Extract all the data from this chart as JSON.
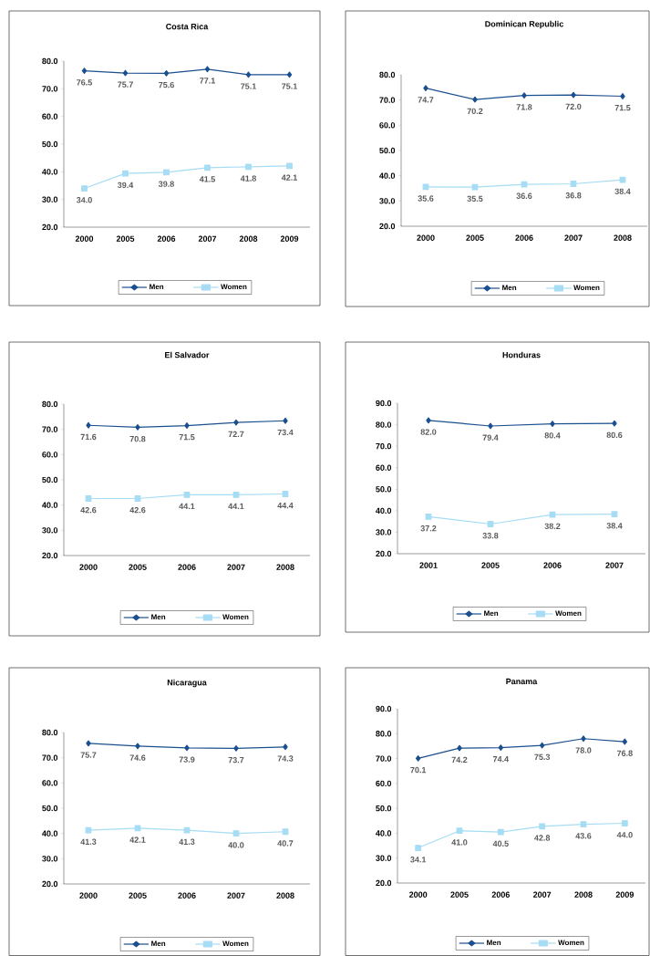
{
  "chart_data": [
    {
      "type": "line",
      "title": "Costa Rica",
      "categories": [
        "2000",
        "2005",
        "2006",
        "2007",
        "2008",
        "2009"
      ],
      "ylim": [
        20,
        80
      ],
      "yticks": [
        {
          "value": 20,
          "label": "20.0"
        },
        {
          "value": 30,
          "label": "30.0"
        },
        {
          "value": 40,
          "label": "40.0"
        },
        {
          "value": 50,
          "label": "50.0"
        },
        {
          "value": 60,
          "label": "60.0"
        },
        {
          "value": 70,
          "label": "70.0"
        },
        {
          "value": 80,
          "label": "80.0"
        }
      ],
      "legend": "bottom",
      "grid": false,
      "series": [
        {
          "name": "Men",
          "color": "#1b4f8f",
          "marker": "diamond",
          "values": [
            76.5,
            75.7,
            75.6,
            77.1,
            75.1,
            75.1
          ],
          "value_labels": [
            "76.5",
            "75.7",
            "75.6",
            "77.1",
            "75.1",
            "75.1"
          ]
        },
        {
          "name": "Women",
          "color": "#a6dcf4",
          "marker": "square",
          "values": [
            34.0,
            39.4,
            39.8,
            41.5,
            41.8,
            42.1
          ],
          "value_labels": [
            "34.0",
            "39.4",
            "39.8",
            "41.5",
            "41.8",
            "42.1"
          ]
        }
      ]
    },
    {
      "type": "line",
      "title": "Dominican Republic",
      "categories": [
        "2000",
        "2005",
        "2006",
        "2007",
        "2008"
      ],
      "ylim": [
        20,
        80
      ],
      "yticks": [
        {
          "value": 20,
          "label": "20.0"
        },
        {
          "value": 30,
          "label": "30.0"
        },
        {
          "value": 40,
          "label": "40.0"
        },
        {
          "value": 50,
          "label": "50.0"
        },
        {
          "value": 60,
          "label": "60.0"
        },
        {
          "value": 70,
          "label": "70.0"
        },
        {
          "value": 80,
          "label": "80.0"
        }
      ],
      "legend": "bottom",
      "grid": false,
      "series": [
        {
          "name": "Men",
          "color": "#1b4f8f",
          "marker": "diamond",
          "values": [
            74.7,
            70.2,
            71.8,
            72.0,
            71.5
          ],
          "value_labels": [
            "74.7",
            "70.2",
            "71.8",
            "72.0",
            "71.5"
          ]
        },
        {
          "name": "Women",
          "color": "#a6dcf4",
          "marker": "square",
          "values": [
            35.6,
            35.5,
            36.6,
            36.8,
            38.4
          ],
          "value_labels": [
            "35.6",
            "35.5",
            "36.6",
            "36.8",
            "38.4"
          ]
        }
      ]
    },
    {
      "type": "line",
      "title": "El Salvador",
      "categories": [
        "2000",
        "2005",
        "2006",
        "2007",
        "2008"
      ],
      "ylim": [
        20,
        80
      ],
      "yticks": [
        {
          "value": 20,
          "label": "20.0"
        },
        {
          "value": 30,
          "label": "30.0"
        },
        {
          "value": 40,
          "label": "40.0"
        },
        {
          "value": 50,
          "label": "50.0"
        },
        {
          "value": 60,
          "label": "60.0"
        },
        {
          "value": 70,
          "label": "70.0"
        },
        {
          "value": 80,
          "label": "80.0"
        }
      ],
      "legend": "bottom",
      "grid": false,
      "series": [
        {
          "name": "Men",
          "color": "#1b4f8f",
          "marker": "diamond",
          "values": [
            71.6,
            70.8,
            71.5,
            72.7,
            73.4
          ],
          "value_labels": [
            "71.6",
            "70.8",
            "71.5",
            "72.7",
            "73.4"
          ]
        },
        {
          "name": "Women",
          "color": "#a6dcf4",
          "marker": "square",
          "values": [
            42.6,
            42.6,
            44.1,
            44.1,
            44.4
          ],
          "value_labels": [
            "42.6",
            "42.6",
            "44.1",
            "44.1",
            "44.4"
          ]
        }
      ]
    },
    {
      "type": "line",
      "title": "Honduras",
      "categories": [
        "2001",
        "2005",
        "2006",
        "2007"
      ],
      "ylim": [
        20,
        90
      ],
      "yticks": [
        {
          "value": 20,
          "label": "20.0"
        },
        {
          "value": 30,
          "label": "30.0"
        },
        {
          "value": 40,
          "label": "40.0"
        },
        {
          "value": 50,
          "label": "50.0"
        },
        {
          "value": 60,
          "label": "60.0"
        },
        {
          "value": 70,
          "label": "70.0"
        },
        {
          "value": 80,
          "label": "80.0"
        },
        {
          "value": 90,
          "label": "90.0"
        }
      ],
      "legend": "bottom",
      "grid": false,
      "series": [
        {
          "name": "Men",
          "color": "#1b4f8f",
          "marker": "diamond",
          "values": [
            82.0,
            79.4,
            80.4,
            80.6
          ],
          "value_labels": [
            "82.0",
            "79.4",
            "80.4",
            "80.6"
          ]
        },
        {
          "name": "Women",
          "color": "#a6dcf4",
          "marker": "square",
          "values": [
            37.2,
            33.8,
            38.2,
            38.4
          ],
          "value_labels": [
            "37.2",
            "33.8",
            "38.2",
            "38.4"
          ]
        }
      ]
    },
    {
      "type": "line",
      "title": "Nicaragua",
      "categories": [
        "2000",
        "2005",
        "2006",
        "2007",
        "2008"
      ],
      "ylim": [
        20,
        80
      ],
      "yticks": [
        {
          "value": 20,
          "label": "20.0"
        },
        {
          "value": 30,
          "label": "30.0"
        },
        {
          "value": 40,
          "label": "40.0"
        },
        {
          "value": 50,
          "label": "50.0"
        },
        {
          "value": 60,
          "label": "60.0"
        },
        {
          "value": 70,
          "label": "70.0"
        },
        {
          "value": 80,
          "label": "80.0"
        }
      ],
      "legend": "bottom",
      "grid": false,
      "series": [
        {
          "name": "Men",
          "color": "#1b4f8f",
          "marker": "diamond",
          "values": [
            75.7,
            74.6,
            73.9,
            73.7,
            74.3
          ],
          "value_labels": [
            "75.7",
            "74.6",
            "73.9",
            "73.7",
            "74.3"
          ]
        },
        {
          "name": "Women",
          "color": "#a6dcf4",
          "marker": "square",
          "values": [
            41.3,
            42.1,
            41.3,
            40.0,
            40.7
          ],
          "value_labels": [
            "41.3",
            "42.1",
            "41.3",
            "40.0",
            "40.7"
          ]
        }
      ]
    },
    {
      "type": "line",
      "title": "Panama",
      "categories": [
        "2000",
        "2005",
        "2006",
        "2007",
        "2008",
        "2009"
      ],
      "ylim": [
        20,
        90
      ],
      "yticks": [
        {
          "value": 20,
          "label": "20.0"
        },
        {
          "value": 30,
          "label": "30.0"
        },
        {
          "value": 40,
          "label": "40.0"
        },
        {
          "value": 50,
          "label": "50.0"
        },
        {
          "value": 60,
          "label": "60.0"
        },
        {
          "value": 70,
          "label": "70.0"
        },
        {
          "value": 80,
          "label": "80.0"
        },
        {
          "value": 90,
          "label": "90.0"
        }
      ],
      "legend": "bottom",
      "grid": false,
      "series": [
        {
          "name": "Men",
          "color": "#1b4f8f",
          "marker": "diamond",
          "values": [
            70.1,
            74.2,
            74.4,
            75.3,
            78.0,
            76.8
          ],
          "value_labels": [
            "70.1",
            "74.2",
            "74.4",
            "75.3",
            "78.0",
            "76.8"
          ]
        },
        {
          "name": "Women",
          "color": "#a6dcf4",
          "marker": "square",
          "values": [
            34.1,
            41.0,
            40.5,
            42.8,
            43.6,
            44.0
          ],
          "value_labels": [
            "34.1",
            "41.0",
            "40.5",
            "42.8",
            "43.6",
            "44.0"
          ]
        }
      ]
    }
  ]
}
